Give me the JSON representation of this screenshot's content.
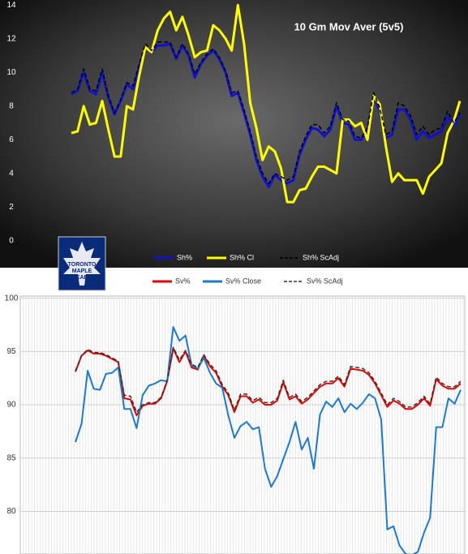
{
  "chart_data": [
    {
      "type": "line",
      "title": "10 Gm Mov Aver (5v5)",
      "categories": [
        null,
        null,
        null,
        null,
        null,
        null,
        null,
        null,
        null,
        null,
        null,
        null,
        null,
        null,
        null,
        null,
        null,
        null,
        null,
        null,
        null,
        null,
        null,
        null,
        null,
        null,
        null,
        null,
        null,
        null,
        null,
        null,
        null,
        null,
        null,
        null,
        null,
        null,
        null,
        null,
        null,
        null,
        null,
        null,
        null,
        null,
        null,
        null,
        null,
        null,
        null,
        null,
        null,
        null,
        null,
        null,
        null,
        null,
        null,
        null,
        null,
        null,
        null,
        null
      ],
      "ylim": [
        -1.6,
        14.3
      ],
      "yticks": [
        0,
        2,
        4,
        6,
        8,
        10,
        12,
        14
      ],
      "grid": false,
      "series": [
        {
          "name": "Sh%",
          "color": "#1010d0",
          "dash": false,
          "values": [
            8.7,
            8.9,
            10.0,
            8.9,
            8.7,
            10.0,
            8.5,
            7.5,
            8.3,
            9.3,
            9.0,
            10.3,
            11.5,
            11.2,
            11.6,
            11.6,
            11.7,
            10.8,
            11.6,
            11.0,
            9.7,
            10.5,
            11.0,
            11.3,
            10.8,
            10.0,
            8.6,
            8.8,
            7.6,
            6.3,
            4.8,
            3.8,
            3.2,
            3.9,
            3.6,
            3.4,
            3.6,
            5.1,
            6.0,
            6.7,
            6.6,
            6.2,
            6.6,
            8.0,
            7.0,
            6.9,
            6.0,
            6.0,
            6.5,
            8.6,
            7.7,
            6.1,
            6.3,
            7.8,
            7.8,
            7.2,
            6.0,
            6.5,
            6.1,
            6.3,
            6.5,
            7.4,
            6.8,
            7.5
          ]
        },
        {
          "name": "Sh% Cl",
          "color": "#ffff00",
          "dash": false,
          "values": [
            6.4,
            6.5,
            8.0,
            6.9,
            7.0,
            8.3,
            6.6,
            5.0,
            5.0,
            8.0,
            7.8,
            9.8,
            11.5,
            11.2,
            12.5,
            13.2,
            13.6,
            12.5,
            13.3,
            12.2,
            10.9,
            11.2,
            11.3,
            12.8,
            12.5,
            12.0,
            11.3,
            14.0,
            11.7,
            8.2,
            6.7,
            4.8,
            5.6,
            5.3,
            4.3,
            2.3,
            2.3,
            3.0,
            3.1,
            3.8,
            4.4,
            4.4,
            4.2,
            4.0,
            7.2,
            7.2,
            6.8,
            7.0,
            6.0,
            8.6,
            8.1,
            5.6,
            3.5,
            4.0,
            3.6,
            3.6,
            3.6,
            2.8,
            3.8,
            4.2,
            4.6,
            6.4,
            7.1,
            8.3
          ]
        },
        {
          "name": "Sh% ScAdj",
          "color": "#000000",
          "dash": true,
          "values": [
            8.8,
            9.0,
            10.2,
            9.0,
            8.9,
            10.2,
            8.6,
            7.6,
            8.4,
            9.4,
            9.2,
            10.5,
            11.7,
            11.3,
            11.8,
            11.8,
            11.8,
            10.9,
            11.7,
            11.1,
            9.9,
            10.6,
            11.1,
            11.4,
            10.9,
            10.1,
            8.8,
            8.9,
            7.8,
            6.5,
            5.0,
            4.0,
            3.4,
            4.0,
            3.8,
            3.6,
            3.8,
            5.3,
            6.2,
            6.9,
            6.9,
            6.4,
            6.8,
            8.2,
            7.2,
            7.1,
            6.2,
            6.1,
            6.7,
            8.8,
            7.9,
            6.3,
            6.5,
            8.2,
            8.0,
            7.4,
            6.3,
            6.8,
            6.3,
            6.6,
            6.7,
            7.7,
            7.0,
            7.6
          ]
        }
      ]
    },
    {
      "type": "line",
      "categories": [
        null,
        null,
        null,
        null,
        null,
        null,
        null,
        null,
        null,
        null,
        null,
        null,
        null,
        null,
        null,
        null,
        null,
        null,
        null,
        null,
        null,
        null,
        null,
        null,
        null,
        null,
        null,
        null,
        null,
        null,
        null,
        null,
        null,
        null,
        null,
        null,
        null,
        null,
        null,
        null,
        null,
        null,
        null,
        null,
        null,
        null,
        null,
        null,
        null,
        null,
        null,
        null,
        null,
        null,
        null,
        null,
        null,
        null,
        null,
        null,
        null,
        null,
        null,
        null
      ],
      "ylim": [
        76,
        100.2
      ],
      "yticks": [
        80,
        85,
        90,
        95,
        100
      ],
      "grid": true,
      "series": [
        {
          "name": "Sv%",
          "color": "#e00000",
          "dash": false,
          "values": [
            93.1,
            94.6,
            95.1,
            94.8,
            94.8,
            94.6,
            94.3,
            94.0,
            90.6,
            90.5,
            89.0,
            89.9,
            90.1,
            90.1,
            90.6,
            92.2,
            95.3,
            94.0,
            95.0,
            93.5,
            93.3,
            94.6,
            93.6,
            93.0,
            91.7,
            90.9,
            89.3,
            90.8,
            90.8,
            90.2,
            90.5,
            90.0,
            90.0,
            90.4,
            92.1,
            90.5,
            90.8,
            90.1,
            90.5,
            91.1,
            91.7,
            92.0,
            92.0,
            92.5,
            91.7,
            93.4,
            93.3,
            93.2,
            92.8,
            92.0,
            90.9,
            89.8,
            90.4,
            90.1,
            89.6,
            89.6,
            90.0,
            90.6,
            89.9,
            92.4,
            91.8,
            91.5,
            91.5,
            92.0
          ]
        },
        {
          "name": "Sv% Close",
          "color": "#1f78c8",
          "dash": false,
          "values": [
            86.5,
            88.2,
            93.2,
            91.5,
            91.4,
            92.9,
            93.0,
            93.5,
            89.6,
            89.6,
            87.8,
            90.9,
            91.8,
            92.0,
            92.3,
            92.2,
            97.3,
            96.0,
            96.5,
            93.7,
            93.4,
            94.4,
            93.0,
            92.0,
            91.6,
            89.0,
            86.9,
            88.0,
            88.4,
            87.7,
            87.9,
            84.0,
            82.3,
            83.3,
            84.9,
            86.5,
            88.4,
            85.8,
            86.9,
            84.0,
            89.1,
            90.3,
            89.8,
            90.6,
            89.3,
            90.1,
            89.6,
            90.2,
            91.0,
            90.6,
            88.6,
            78.3,
            78.6,
            76.8,
            76.0,
            75.9,
            76.2,
            78.0,
            79.4,
            87.9,
            87.9,
            90.6,
            90.1,
            91.4
          ]
        },
        {
          "name": "Sv% ScAdj",
          "color": "#333333",
          "dash": true,
          "values": [
            93.2,
            94.6,
            95.2,
            94.9,
            94.9,
            94.7,
            94.4,
            94.1,
            90.9,
            90.8,
            89.3,
            90.0,
            90.2,
            90.2,
            90.7,
            92.3,
            95.4,
            94.2,
            95.1,
            93.8,
            93.5,
            94.7,
            93.8,
            93.2,
            91.9,
            91.1,
            89.5,
            91.0,
            91.0,
            90.4,
            90.7,
            90.2,
            90.2,
            90.6,
            92.3,
            90.7,
            91.0,
            90.3,
            90.7,
            91.3,
            91.9,
            92.2,
            92.2,
            92.7,
            91.9,
            93.6,
            93.5,
            93.4,
            93.0,
            92.2,
            91.1,
            90.0,
            90.6,
            90.3,
            89.8,
            89.8,
            90.2,
            90.8,
            90.1,
            92.6,
            92.0,
            91.7,
            91.7,
            92.2
          ]
        }
      ]
    }
  ],
  "logo": {
    "lines": [
      "TORONTO",
      "MAPLE",
      "LEAFS"
    ]
  }
}
